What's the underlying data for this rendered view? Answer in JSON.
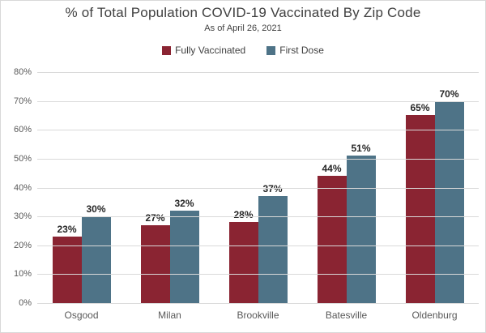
{
  "chart_data": {
    "type": "bar",
    "title": "% of Total Population COVID-19 Vaccinated By Zip Code",
    "subtitle": "As of April 26, 2021",
    "categories": [
      "Osgood",
      "Milan",
      "Brookville",
      "Batesville",
      "Oldenburg"
    ],
    "series": [
      {
        "name": "Fully Vaccinated",
        "color": "#8A2432",
        "values": [
          23,
          27,
          28,
          44,
          65
        ],
        "labels": [
          "23%",
          "27%",
          "28%",
          "44%",
          "65%"
        ]
      },
      {
        "name": "First Dose",
        "color": "#4E7387",
        "values": [
          30,
          32,
          37,
          51,
          70
        ],
        "labels": [
          "30%",
          "32%",
          "37%",
          "51%",
          "70%"
        ]
      }
    ],
    "xlabel": "",
    "ylabel": "",
    "ylim": [
      0,
      80
    ],
    "ytick_step": 10,
    "ytick_labels": [
      "0%",
      "10%",
      "20%",
      "30%",
      "40%",
      "50%",
      "60%",
      "70%",
      "80%"
    ],
    "grid": true,
    "legend_position": "top-center"
  },
  "colors": {
    "title_text": "#404040",
    "axis_text": "#595959",
    "gridline": "#D9D9D9",
    "value_label_text": "#262626",
    "background": "#FFFFFF",
    "border": "#D9D9D9"
  }
}
